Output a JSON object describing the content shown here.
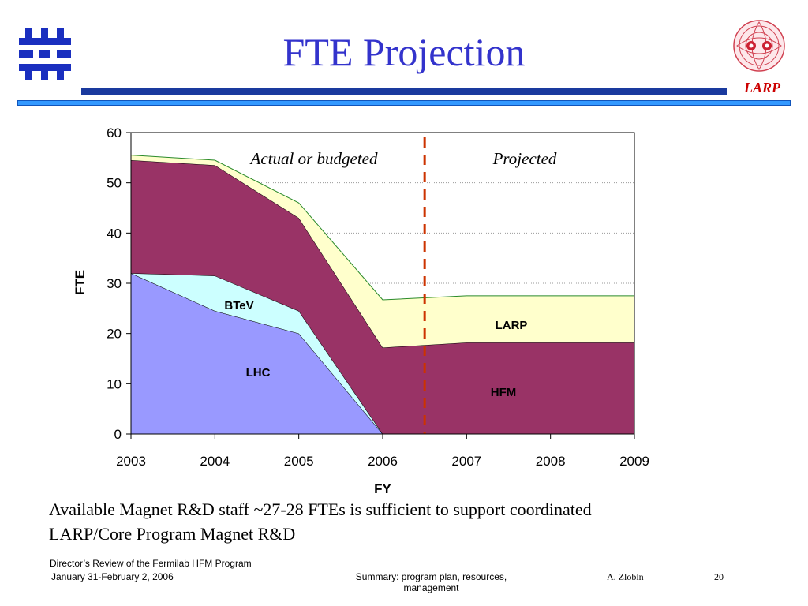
{
  "slide": {
    "title": "FTE Projection",
    "caption_line1": "Available Magnet R&D staff ~27-28 FTEs is sufficient to support coordinated",
    "caption_line2": "LARP/Core Program Magnet R&D",
    "larp_logo_text": "LARP"
  },
  "footer": {
    "event_line1": "Director’s Review of the Fermilab HFM Program",
    "event_line2": "January 31-February 2, 2006",
    "summary_line1": "Summary: program plan, resources,",
    "summary_line2": "management",
    "author": "A. Zlobin",
    "page": "20"
  },
  "colors": {
    "title": "#3333cc",
    "lhc": "#9999ff",
    "btev": "#ccffff",
    "hfm": "#993366",
    "larp": "#ffffcc",
    "divider": "#cc3300",
    "larp_logo": "#cc0000"
  },
  "icons": {
    "left_logo": "fermilab-logo-icon",
    "right_logo": "larp-logo-icon"
  },
  "chart_data": {
    "type": "area",
    "stacked": true,
    "x": [
      2003,
      2004,
      2005,
      2006,
      2007,
      2008,
      2009
    ],
    "xlabel": "FY",
    "ylabel": "FTE",
    "xlim": [
      2003,
      2009
    ],
    "ylim": [
      0,
      60
    ],
    "yticks": [
      0,
      10,
      20,
      30,
      40,
      50,
      60
    ],
    "grid": "horizontal dotted",
    "series": [
      {
        "name": "LHC",
        "values": [
          32,
          24.5,
          20,
          0,
          0,
          0,
          0
        ]
      },
      {
        "name": "BTeV",
        "values": [
          0,
          7,
          4.5,
          0,
          0,
          0,
          0
        ]
      },
      {
        "name": "HFM",
        "values": [
          22.5,
          22,
          18.5,
          17.2,
          18.2,
          18.2,
          18.2
        ]
      },
      {
        "name": "LARP",
        "values": [
          1,
          1,
          3,
          9.5,
          9.3,
          9.3,
          9.3
        ]
      }
    ],
    "divider_x": 2006.5,
    "annotations": [
      "Actual or budgeted",
      "Projected"
    ]
  }
}
